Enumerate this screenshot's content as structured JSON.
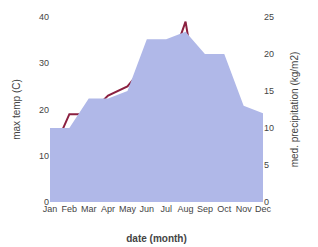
{
  "chart_data": {
    "type": "line",
    "xlabel": "date (month)",
    "ylabel": "max temp (C)",
    "y2label": "med. precipitation (kg/m2)",
    "categories": [
      "Jan",
      "Feb",
      "Mar",
      "Apr",
      "May",
      "Jun",
      "Jul",
      "Aug",
      "Sep",
      "Oct",
      "Nov",
      "Dec"
    ],
    "series": [
      {
        "type": "area",
        "axis": "y2",
        "color": "#b0b8e8",
        "values": [
          10,
          10,
          14,
          14,
          15,
          22,
          22,
          23,
          20,
          20,
          13,
          12
        ]
      },
      {
        "type": "line",
        "color": "#8b2040",
        "values": [
          9.5,
          19,
          19,
          23,
          25,
          30,
          27,
          39,
          14,
          10,
          7,
          7
        ]
      }
    ],
    "ylim": [
      0,
      40
    ],
    "yticks": [
      0,
      10,
      20,
      30,
      40
    ],
    "y2lim": [
      0,
      25
    ],
    "y2ticks": [
      0,
      5,
      10,
      15,
      20,
      25
    ],
    "grid": false
  }
}
